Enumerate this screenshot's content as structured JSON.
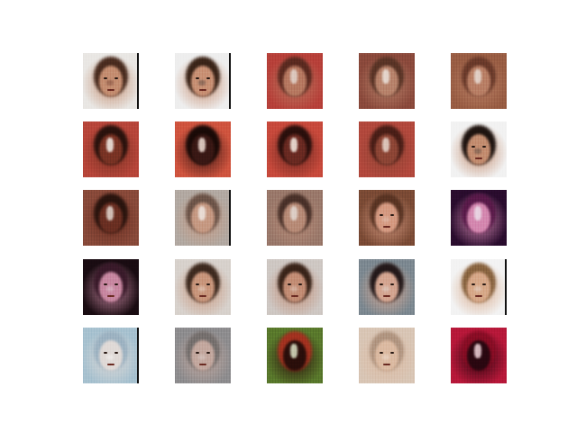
{
  "grid": {
    "rows": 5,
    "cols": 5,
    "tiles": [
      {
        "bg": "#e9e7e4",
        "face": "#c58f72",
        "hair": "#4a2c1f",
        "spot": "#5a2a1f",
        "edge": true,
        "features": true
      },
      {
        "bg": "#eeeeee",
        "face": "#c99276",
        "hair": "#3b2418",
        "spot": "#2a2a2a",
        "edge": true,
        "features": true
      },
      {
        "bg": "#b8413a",
        "face": "#b77a62",
        "hair": "#5b2a20",
        "spot": "#e3d6cf",
        "edge": false,
        "features": false
      },
      {
        "bg": "#8c4a3c",
        "face": "#b8846c",
        "hair": "#5a3426",
        "spot": "#ece4dd",
        "edge": false,
        "features": false
      },
      {
        "bg": "#9a5e44",
        "face": "#b98066",
        "hair": "#6b3a2a",
        "spot": "#e8ddd6",
        "edge": false,
        "features": false
      },
      {
        "bg": "#b8463a",
        "face": "#7a3324",
        "hair": "#2a120d",
        "spot": "#f5efe9",
        "edge": false,
        "features": false
      },
      {
        "bg": "#d0553f",
        "face": "#3a1814",
        "hair": "#1a0a07",
        "spot": "#f3e1d8",
        "edge": false,
        "features": false
      },
      {
        "bg": "#c84a3c",
        "face": "#6b2a22",
        "hair": "#2a0f0c",
        "spot": "#f8efe6",
        "edge": false,
        "features": false
      },
      {
        "bg": "#b3493d",
        "face": "#8e4636",
        "hair": "#4a1e17",
        "spot": "#e9dad1",
        "edge": false,
        "features": false
      },
      {
        "bg": "#f2f2f2",
        "face": "#c48e71",
        "hair": "#1f1410",
        "spot": "#2e2e2e",
        "edge": false,
        "features": true
      },
      {
        "bg": "#8a4a3a",
        "face": "#6b2f22",
        "hair": "#2a140e",
        "spot": "#e4d9d2",
        "edge": false,
        "features": false
      },
      {
        "bg": "#b3aaa3",
        "face": "#c69a84",
        "hair": "#6e5549",
        "spot": "#f0e8e3",
        "edge": true,
        "features": false
      },
      {
        "bg": "#9b7a6c",
        "face": "#b88c78",
        "hair": "#4a3129",
        "spot": "#e4dad4",
        "edge": false,
        "features": false
      },
      {
        "bg": "#7c4b35",
        "face": "#d59b83",
        "hair": "#5a3423",
        "spot": "#ead6ca",
        "edge": false,
        "features": true
      },
      {
        "bg": "#2a0c2e",
        "face": "#d489b0",
        "hair": "#5a1a4a",
        "spot": "#ece0ea",
        "edge": false,
        "features": false
      },
      {
        "bg": "#1a0c12",
        "face": "#c889a2",
        "hair": "#3a1a2a",
        "spot": "#ece2e7",
        "edge": false,
        "features": true
      },
      {
        "bg": "#d8d2cd",
        "face": "#c9977d",
        "hair": "#3e2a1f",
        "spot": "#f7f0ea",
        "edge": false,
        "features": true
      },
      {
        "bg": "#cfc8c4",
        "face": "#c38e76",
        "hair": "#3a2419",
        "spot": "#efe6df",
        "edge": false,
        "features": true
      },
      {
        "bg": "#7e8a92",
        "face": "#d4a692",
        "hair": "#24191a",
        "spot": "#e7ece9",
        "edge": false,
        "features": true
      },
      {
        "bg": "#f3f3f3",
        "face": "#d7a98a",
        "hair": "#8a6540",
        "spot": "#eeeeee",
        "edge": true,
        "features": true
      },
      {
        "bg": "#a8c2d0",
        "face": "#e0dad7",
        "hair": "#9eb3c2",
        "spot": "#ffffff",
        "edge": true,
        "features": true
      },
      {
        "bg": "#8f8e90",
        "face": "#c4a9a0",
        "hair": "#77716f",
        "spot": "#e6dfdb",
        "edge": false,
        "features": true
      },
      {
        "bg": "#5a7a2c",
        "face": "#2a0e0a",
        "hair": "#a43220",
        "spot": "#dfe5c9",
        "edge": false,
        "features": false
      },
      {
        "bg": "#d9c6b6",
        "face": "#dcbba3",
        "hair": "#b19682",
        "spot": "#f6eee7",
        "edge": false,
        "features": true
      },
      {
        "bg": "#b8183a",
        "face": "#2a0710",
        "hair": "#8a0d25",
        "spot": "#f2d6dc",
        "edge": false,
        "features": false
      }
    ]
  }
}
